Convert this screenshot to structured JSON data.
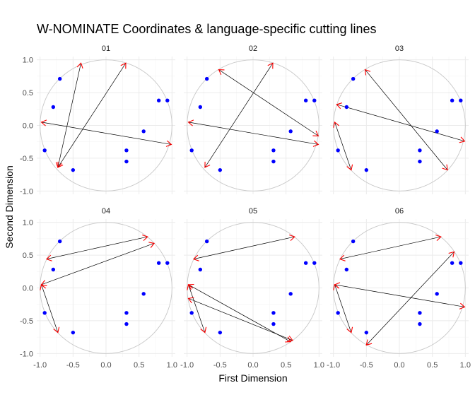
{
  "chart_data": {
    "type": "scatter",
    "title": "W-NOMINATE Coordinates & language-specific cutting lines",
    "xlabel": "First Dimension",
    "ylabel": "Second Dimension",
    "xlim": [
      -1.05,
      1.05
    ],
    "ylim": [
      -1.05,
      1.05
    ],
    "x_ticks": [
      -1.0,
      -0.5,
      0.0,
      0.5,
      1.0
    ],
    "x_tick_labels": [
      "-1.0",
      "-0.5",
      "0.0",
      "0.5",
      "1.0"
    ],
    "y_ticks": [
      -1.0,
      -0.5,
      0.0,
      0.5,
      1.0
    ],
    "y_tick_labels": [
      "-1.0",
      "-0.5",
      "0.0",
      "0.5",
      "1.0"
    ],
    "grid": true,
    "unit_circle": true,
    "point_color": "#0000ff",
    "arrow_color": "#ff0000",
    "line_color": "#000000",
    "points": [
      {
        "x": -0.7,
        "y": 0.71
      },
      {
        "x": -0.8,
        "y": 0.28
      },
      {
        "x": 0.8,
        "y": 0.38
      },
      {
        "x": 0.93,
        "y": 0.38
      },
      {
        "x": 0.57,
        "y": -0.09
      },
      {
        "x": -0.93,
        "y": -0.38
      },
      {
        "x": 0.31,
        "y": -0.38
      },
      {
        "x": 0.31,
        "y": -0.55
      },
      {
        "x": -0.5,
        "y": -0.68
      }
    ],
    "panels": [
      {
        "label": "01",
        "cutting_lines": [
          {
            "start": [
              -0.73,
              -0.64
            ],
            "end": [
              -0.38,
              0.95
            ]
          },
          {
            "start": [
              -0.73,
              -0.64
            ],
            "end": [
              0.3,
              0.95
            ]
          },
          {
            "start": [
              -0.98,
              0.05
            ],
            "end": [
              0.99,
              -0.29
            ]
          }
        ]
      },
      {
        "label": "02",
        "cutting_lines": [
          {
            "start": [
              -0.73,
              -0.64
            ],
            "end": [
              0.3,
              0.95
            ]
          },
          {
            "start": [
              -0.52,
              0.85
            ],
            "end": [
              0.99,
              -0.16
            ]
          },
          {
            "start": [
              -0.98,
              0.05
            ],
            "end": [
              0.99,
              -0.29
            ]
          }
        ]
      },
      {
        "label": "03",
        "cutting_lines": [
          {
            "start": [
              -0.52,
              0.85
            ],
            "end": [
              0.73,
              -0.68
            ]
          },
          {
            "start": [
              -0.95,
              0.32
            ],
            "end": [
              0.99,
              -0.24
            ]
          },
          {
            "start": [
              -0.98,
              0.05
            ],
            "end": [
              -0.73,
              -0.68
            ]
          }
        ]
      },
      {
        "label": "04",
        "cutting_lines": [
          {
            "start": [
              -0.9,
              0.44
            ],
            "end": [
              0.63,
              0.78
            ]
          },
          {
            "start": [
              -0.98,
              0.05
            ],
            "end": [
              0.73,
              0.68
            ]
          },
          {
            "start": [
              -0.98,
              0.05
            ],
            "end": [
              -0.73,
              -0.68
            ]
          }
        ]
      },
      {
        "label": "05",
        "cutting_lines": [
          {
            "start": [
              -0.9,
              0.44
            ],
            "end": [
              0.63,
              0.78
            ]
          },
          {
            "start": [
              -0.98,
              0.05
            ],
            "end": [
              0.57,
              -0.82
            ]
          },
          {
            "start": [
              -0.98,
              0.05
            ],
            "end": [
              -0.73,
              -0.68
            ]
          },
          {
            "start": [
              -0.98,
              -0.16
            ],
            "end": [
              0.6,
              -0.8
            ]
          }
        ]
      },
      {
        "label": "06",
        "cutting_lines": [
          {
            "start": [
              -0.9,
              0.44
            ],
            "end": [
              0.63,
              0.78
            ]
          },
          {
            "start": [
              -0.5,
              -0.87
            ],
            "end": [
              0.83,
              0.55
            ]
          },
          {
            "start": [
              -0.98,
              0.05
            ],
            "end": [
              0.99,
              -0.29
            ]
          },
          {
            "start": [
              -0.98,
              0.05
            ],
            "end": [
              -0.73,
              -0.68
            ]
          }
        ]
      }
    ]
  }
}
